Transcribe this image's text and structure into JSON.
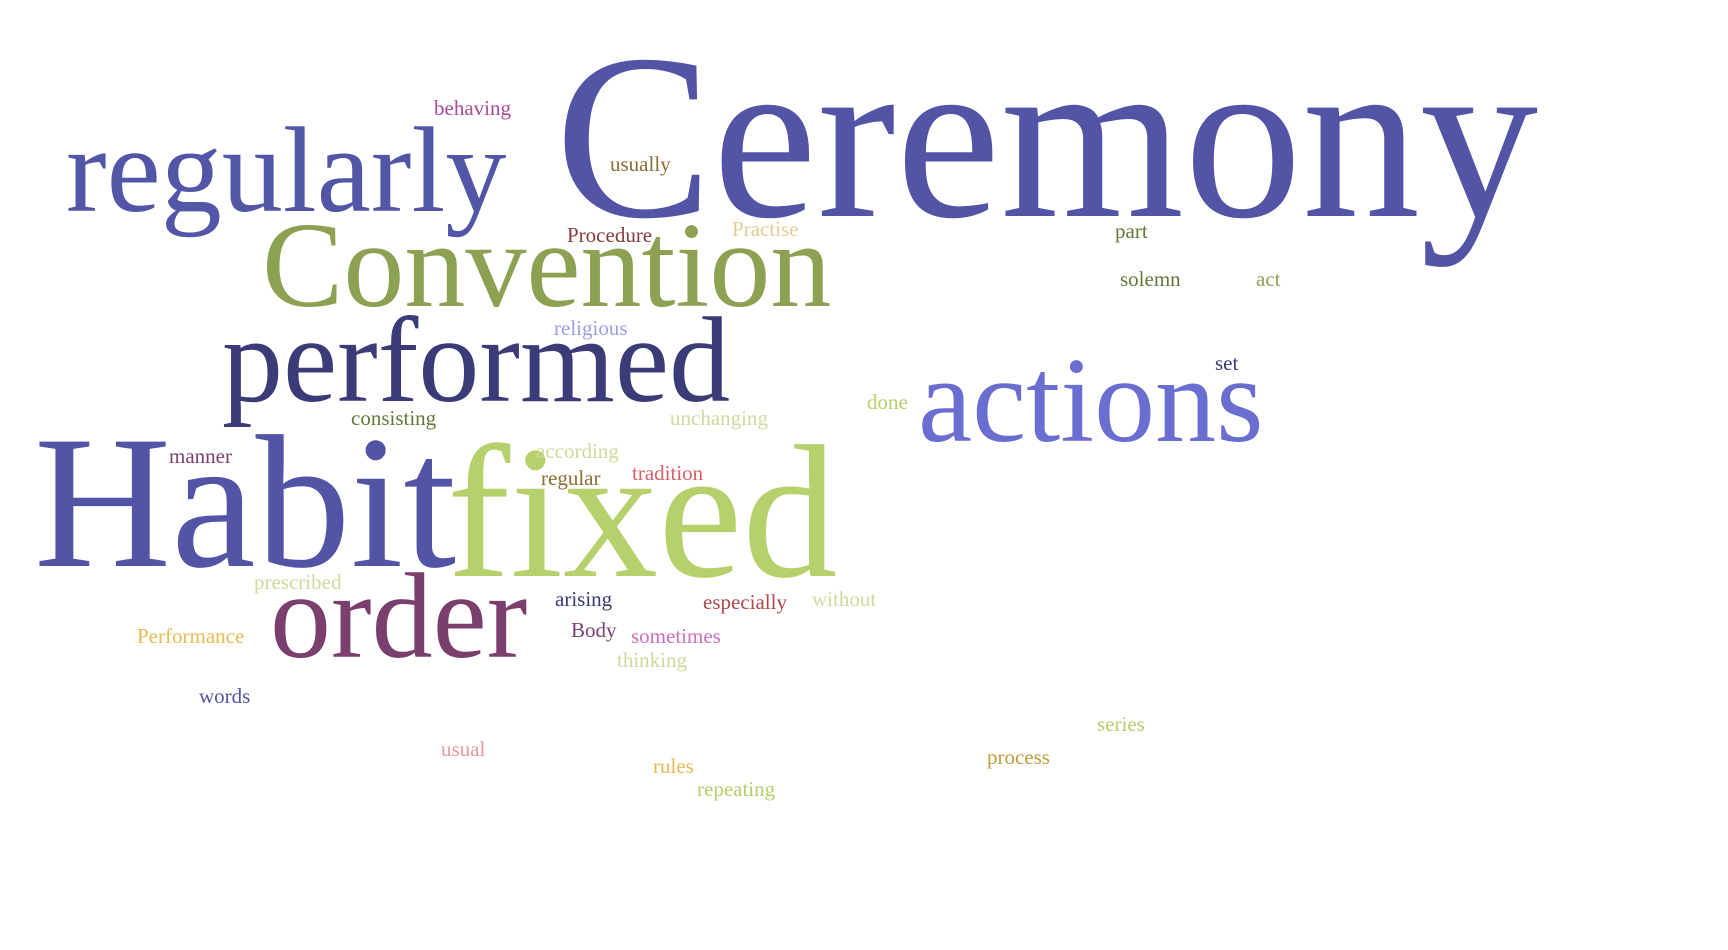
{
  "words": [
    {
      "text": "Ceremony",
      "color": "#5255a6"
    },
    {
      "text": "regularly",
      "color": "#5256a6"
    },
    {
      "text": "Convention",
      "color": "#8da153"
    },
    {
      "text": "performed",
      "color": "#3b3c77"
    },
    {
      "text": "actions",
      "color": "#6b6ed1"
    },
    {
      "text": "Habit",
      "color": "#5255a6"
    },
    {
      "text": "fixed",
      "color": "#b6d16b"
    },
    {
      "text": "order",
      "color": "#7b3f6e"
    },
    {
      "text": "behaving",
      "color": "#a84a9c"
    },
    {
      "text": "usually",
      "color": "#8c6d31"
    },
    {
      "text": "Procedure",
      "color": "#843c39"
    },
    {
      "text": "Practise",
      "color": "#e7cb94"
    },
    {
      "text": "part",
      "color": "#637939"
    },
    {
      "text": "solemn",
      "color": "#637939"
    },
    {
      "text": "act",
      "color": "#8ca252"
    },
    {
      "text": "religious",
      "color": "#9c9ede"
    },
    {
      "text": "set",
      "color": "#393b79"
    },
    {
      "text": "done",
      "color": "#b5cf6b"
    },
    {
      "text": "consisting",
      "color": "#637939"
    },
    {
      "text": "unchanging",
      "color": "#cedb9c"
    },
    {
      "text": "manner",
      "color": "#7b4173"
    },
    {
      "text": "according",
      "color": "#cedb9c"
    },
    {
      "text": "regular",
      "color": "#8c6d31"
    },
    {
      "text": "tradition",
      "color": "#d6616b"
    },
    {
      "text": "prescribed",
      "color": "#cedb9c"
    },
    {
      "text": "arising",
      "color": "#393b79"
    },
    {
      "text": "especially",
      "color": "#ad494a"
    },
    {
      "text": "without",
      "color": "#cedb9c"
    },
    {
      "text": "Performance",
      "color": "#e7ba52"
    },
    {
      "text": "Body",
      "color": "#7b4173"
    },
    {
      "text": "sometimes",
      "color": "#ce6dbd"
    },
    {
      "text": "thinking",
      "color": "#cedb9c"
    },
    {
      "text": "words",
      "color": "#5254a3"
    },
    {
      "text": "series",
      "color": "#b5cf6b"
    },
    {
      "text": "usual",
      "color": "#e7969c"
    },
    {
      "text": "process",
      "color": "#bd9e39"
    },
    {
      "text": "rules",
      "color": "#e7ba52"
    },
    {
      "text": "repeating",
      "color": "#b5cf6b"
    }
  ]
}
